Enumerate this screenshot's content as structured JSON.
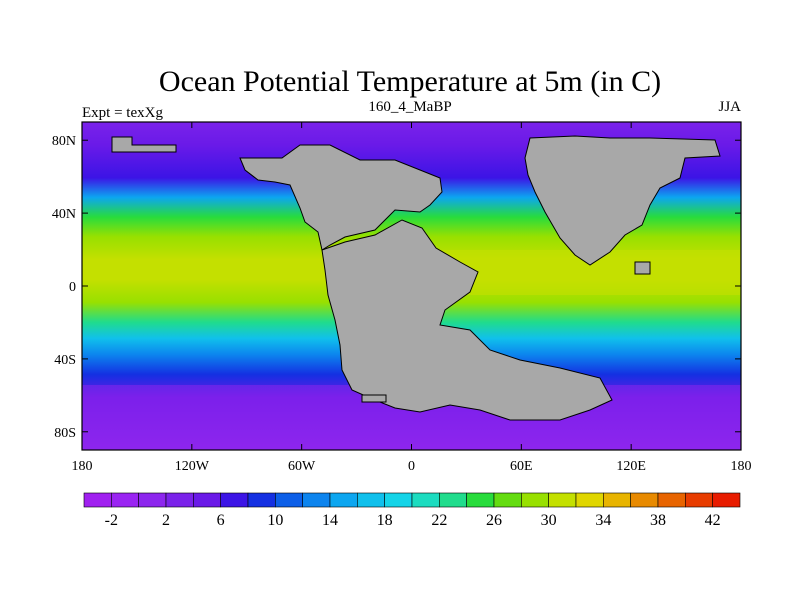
{
  "chart_data": {
    "type": "heatmap",
    "title": "Ocean Potential Temperature at 5m (in C)",
    "subtitle_left": "Expt = texXg",
    "subtitle_center": "160_4_MaBP",
    "subtitle_right": "JJA",
    "x_range": [
      -180,
      180
    ],
    "y_range": [
      -90,
      90
    ],
    "x_ticks": [
      {
        "value": -180,
        "label": "180"
      },
      {
        "value": -120,
        "label": "120W"
      },
      {
        "value": -60,
        "label": "60W"
      },
      {
        "value": 0,
        "label": "0"
      },
      {
        "value": 60,
        "label": "60E"
      },
      {
        "value": 120,
        "label": "120E"
      },
      {
        "value": 180,
        "label": "180"
      }
    ],
    "y_ticks": [
      {
        "value": 80,
        "label": "80N"
      },
      {
        "value": 40,
        "label": "40N"
      },
      {
        "value": 0,
        "label": "0"
      },
      {
        "value": -40,
        "label": "40S"
      },
      {
        "value": -80,
        "label": "80S"
      }
    ],
    "colorbar": {
      "levels": [
        -4,
        -2,
        0,
        2,
        4,
        6,
        8,
        10,
        12,
        14,
        16,
        18,
        20,
        22,
        24,
        26,
        28,
        30,
        32,
        34,
        36,
        38,
        40,
        42,
        44
      ],
      "tick_labels": [
        "-2",
        "2",
        "6",
        "10",
        "14",
        "18",
        "22",
        "26",
        "30",
        "34",
        "38",
        "42"
      ],
      "colors": [
        "#a020f0",
        "#9a24f2",
        "#8d26ee",
        "#7a22ea",
        "#6a1ae8",
        "#3c14e6",
        "#1430e2",
        "#0c5fe8",
        "#0c84ee",
        "#0ca6f0",
        "#10c0ec",
        "#14d4e8",
        "#1cdcc0",
        "#20dc8c",
        "#28dc3c",
        "#64dc10",
        "#98e000",
        "#c4e000",
        "#e0d600",
        "#e8b400",
        "#e88a00",
        "#e86400",
        "#e83c00",
        "#e81c00"
      ]
    },
    "land_color": "#a8a8a8"
  }
}
